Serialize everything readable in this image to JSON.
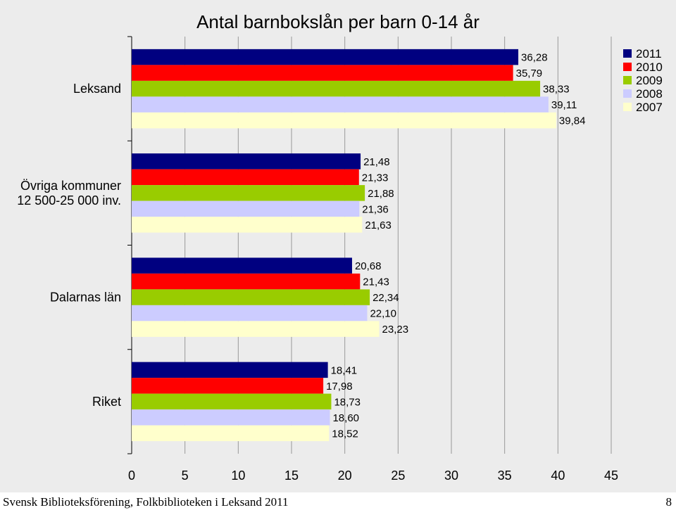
{
  "chart_data": {
    "type": "bar",
    "orientation": "horizontal",
    "title": "Antal barnbokslån per barn 0-14 år",
    "categories": [
      "Leksand",
      "Övriga kommuner\n12 500-25 000 inv.",
      "Dalarnas län",
      "Riket"
    ],
    "series": [
      {
        "name": "2011",
        "color": "#000080",
        "values": [
          36.28,
          21.48,
          20.68,
          18.41
        ],
        "labels": [
          "36,28",
          "21,48",
          "20,68",
          "18,41"
        ]
      },
      {
        "name": "2010",
        "color": "#ff0000",
        "values": [
          35.79,
          21.33,
          21.43,
          17.98
        ],
        "labels": [
          "35,79",
          "21,33",
          "21,43",
          "17,98"
        ]
      },
      {
        "name": "2009",
        "color": "#99cc00",
        "values": [
          38.33,
          21.88,
          22.34,
          18.73
        ],
        "labels": [
          "38,33",
          "21,88",
          "22,34",
          "18,73"
        ]
      },
      {
        "name": "2008",
        "color": "#ccccff",
        "values": [
          39.11,
          21.36,
          22.1,
          18.6
        ],
        "labels": [
          "39,11",
          "21,36",
          "22,10",
          "18,60"
        ]
      },
      {
        "name": "2007",
        "color": "#ffffcc",
        "values": [
          39.84,
          21.63,
          23.23,
          18.52
        ],
        "labels": [
          "39,84",
          "21,63",
          "23,23",
          "18,52"
        ]
      }
    ],
    "xlim": [
      0,
      45
    ],
    "xticks": [
      "0",
      "5",
      "10",
      "15",
      "20",
      "25",
      "30",
      "35",
      "40",
      "45"
    ],
    "grid": true,
    "legend_position": "top-right"
  },
  "footer": {
    "source": "Svensk Biblioteksförening, Folkbiblioteken i Leksand 2011",
    "page_number": "8"
  }
}
